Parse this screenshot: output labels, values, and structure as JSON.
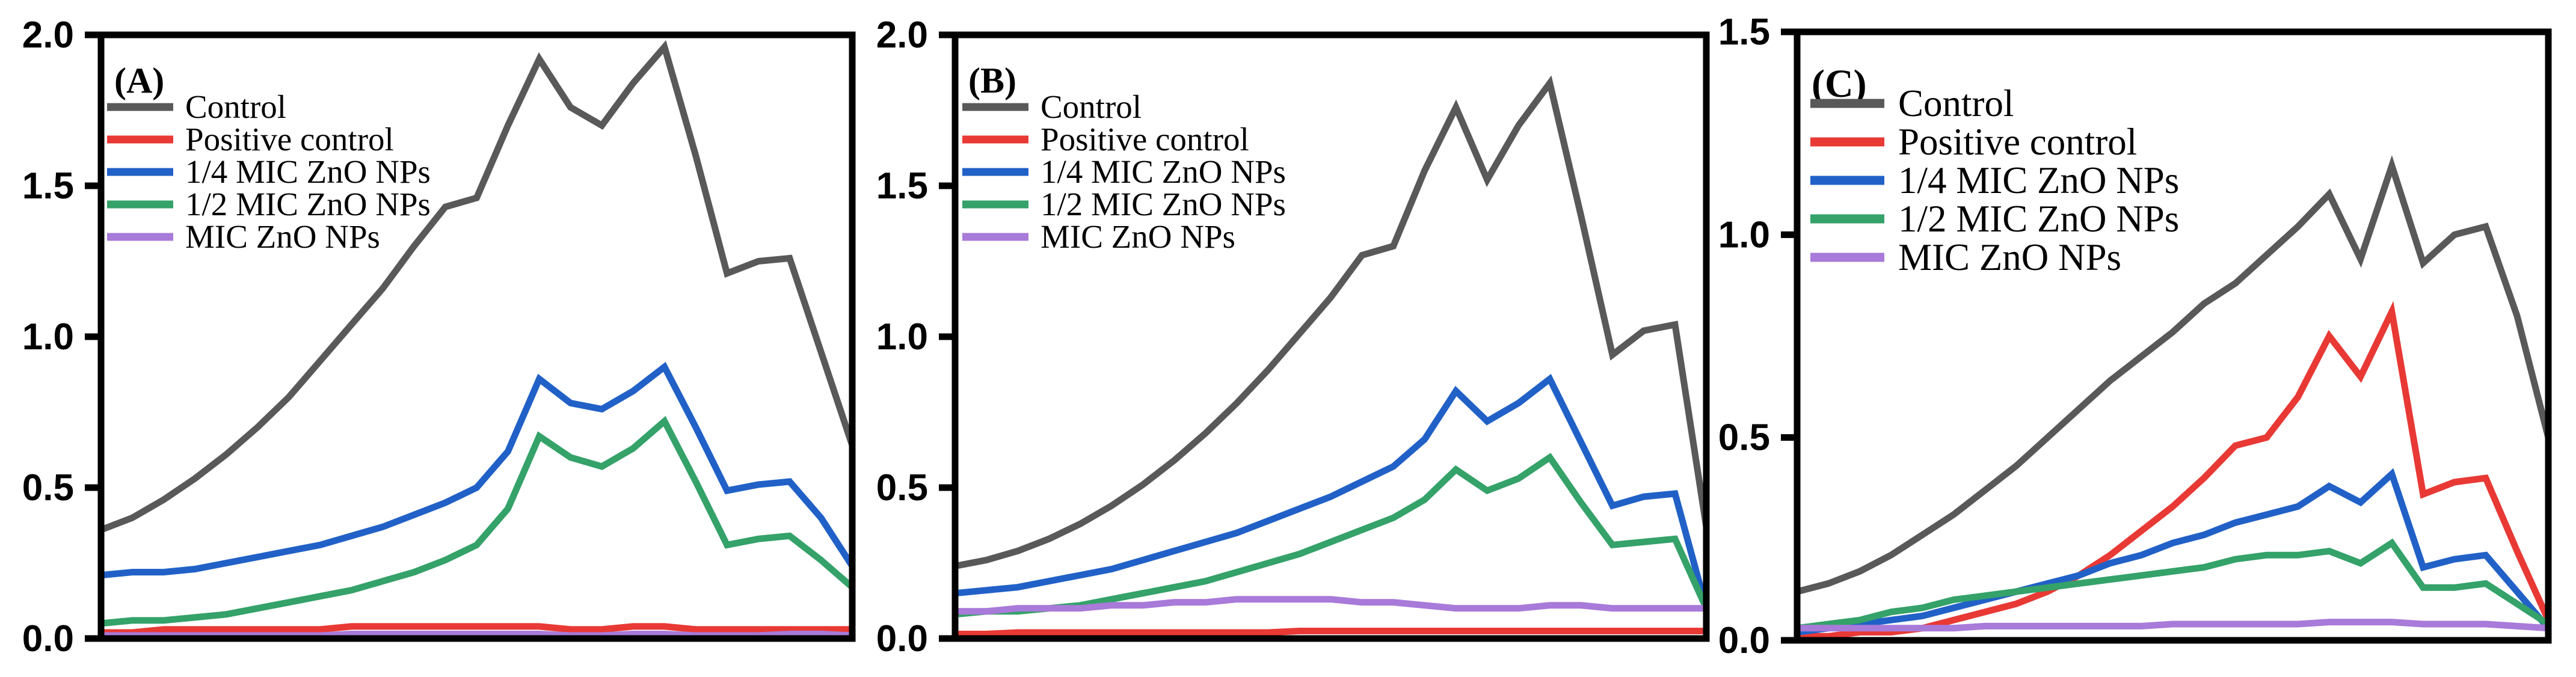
{
  "figure": {
    "background": "#ffffff",
    "frame_color": "#000000",
    "panels": [
      {
        "label": "(A)"
      },
      {
        "label": "(B)"
      },
      {
        "label": "(C)"
      }
    ]
  },
  "chart_data": [
    {
      "type": "line",
      "panel_label": "(A)",
      "title": "",
      "xlabel": "",
      "ylabel": "",
      "ylim": [
        0.0,
        2.0
      ],
      "yticks": [
        0.0,
        0.5,
        1.0,
        1.5,
        2.0
      ],
      "ytick_labels": [
        "0.0",
        "0.5",
        "1.0",
        "1.5",
        "2.0"
      ],
      "xticks": [],
      "grid": false,
      "legend_position": "top-left",
      "x": [
        1,
        2,
        3,
        4,
        5,
        6,
        7,
        8,
        9,
        10,
        11,
        12,
        13,
        14,
        15,
        16,
        17,
        18,
        19,
        20,
        21,
        22,
        23,
        24,
        25
      ],
      "series": [
        {
          "name": "Control",
          "color": "#595959",
          "values": [
            0.36,
            0.4,
            0.46,
            0.53,
            0.61,
            0.7,
            0.8,
            0.92,
            1.04,
            1.16,
            1.3,
            1.43,
            1.46,
            1.7,
            1.92,
            1.76,
            1.7,
            1.84,
            1.96,
            1.6,
            1.21,
            1.25,
            1.26,
            0.95,
            0.64
          ]
        },
        {
          "name": "Positive control",
          "color": "#e83935",
          "values": [
            0.02,
            0.02,
            0.03,
            0.03,
            0.03,
            0.03,
            0.03,
            0.03,
            0.04,
            0.04,
            0.04,
            0.04,
            0.04,
            0.04,
            0.04,
            0.03,
            0.03,
            0.04,
            0.04,
            0.03,
            0.03,
            0.03,
            0.03,
            0.03,
            0.03
          ]
        },
        {
          "name": "1/4 MIC ZnO NPs",
          "color": "#2161c7",
          "values": [
            0.21,
            0.22,
            0.22,
            0.23,
            0.25,
            0.27,
            0.29,
            0.31,
            0.34,
            0.37,
            0.41,
            0.45,
            0.5,
            0.62,
            0.86,
            0.78,
            0.76,
            0.82,
            0.9,
            0.7,
            0.49,
            0.51,
            0.52,
            0.4,
            0.24
          ]
        },
        {
          "name": "1/2 MIC ZnO NPs",
          "color": "#34a269",
          "values": [
            0.05,
            0.06,
            0.06,
            0.07,
            0.08,
            0.1,
            0.12,
            0.14,
            0.16,
            0.19,
            0.22,
            0.26,
            0.31,
            0.43,
            0.67,
            0.6,
            0.57,
            0.63,
            0.72,
            0.52,
            0.31,
            0.33,
            0.34,
            0.26,
            0.17
          ]
        },
        {
          "name": "MIC ZnO NPs",
          "color": "#a87ad9",
          "values": [
            0.01,
            0.01,
            0.01,
            0.01,
            0.01,
            0.01,
            0.01,
            0.01,
            0.015,
            0.015,
            0.015,
            0.015,
            0.015,
            0.015,
            0.015,
            0.01,
            0.01,
            0.015,
            0.015,
            0.01,
            0.01,
            0.01,
            0.015,
            0.015,
            0.01
          ]
        }
      ]
    },
    {
      "type": "line",
      "panel_label": "(B)",
      "title": "",
      "xlabel": "",
      "ylabel": "",
      "ylim": [
        0.0,
        2.0
      ],
      "yticks": [
        0.0,
        0.5,
        1.0,
        1.5,
        2.0
      ],
      "ytick_labels": [
        "0.0",
        "0.5",
        "1.0",
        "1.5",
        "2.0"
      ],
      "xticks": [],
      "grid": false,
      "legend_position": "top-left",
      "x": [
        1,
        2,
        3,
        4,
        5,
        6,
        7,
        8,
        9,
        10,
        11,
        12,
        13,
        14,
        15,
        16,
        17,
        18,
        19,
        20,
        21,
        22,
        23,
        24,
        25
      ],
      "series": [
        {
          "name": "Control",
          "color": "#595959",
          "values": [
            0.24,
            0.26,
            0.29,
            0.33,
            0.38,
            0.44,
            0.51,
            0.59,
            0.68,
            0.78,
            0.89,
            1.01,
            1.13,
            1.27,
            1.3,
            1.55,
            1.76,
            1.52,
            1.7,
            1.84,
            1.4,
            0.94,
            1.02,
            1.04,
            0.37
          ]
        },
        {
          "name": "Positive control",
          "color": "#e83935",
          "values": [
            0.015,
            0.015,
            0.02,
            0.02,
            0.02,
            0.02,
            0.02,
            0.02,
            0.02,
            0.02,
            0.02,
            0.025,
            0.025,
            0.025,
            0.025,
            0.025,
            0.025,
            0.025,
            0.025,
            0.025,
            0.025,
            0.025,
            0.025,
            0.025,
            0.025
          ]
        },
        {
          "name": "1/4 MIC ZnO NPs",
          "color": "#2161c7",
          "values": [
            0.15,
            0.16,
            0.17,
            0.19,
            0.21,
            0.23,
            0.26,
            0.29,
            0.32,
            0.35,
            0.39,
            0.43,
            0.47,
            0.52,
            0.57,
            0.66,
            0.82,
            0.72,
            0.78,
            0.86,
            0.65,
            0.44,
            0.47,
            0.48,
            0.1
          ]
        },
        {
          "name": "1/2 MIC ZnO NPs",
          "color": "#34a269",
          "values": [
            0.08,
            0.09,
            0.09,
            0.1,
            0.11,
            0.13,
            0.15,
            0.17,
            0.19,
            0.22,
            0.25,
            0.28,
            0.32,
            0.36,
            0.4,
            0.46,
            0.56,
            0.49,
            0.53,
            0.6,
            0.45,
            0.31,
            0.32,
            0.33,
            0.1
          ]
        },
        {
          "name": "MIC ZnO NPs",
          "color": "#a87ad9",
          "values": [
            0.09,
            0.09,
            0.1,
            0.1,
            0.1,
            0.11,
            0.11,
            0.12,
            0.12,
            0.13,
            0.13,
            0.13,
            0.13,
            0.12,
            0.12,
            0.11,
            0.1,
            0.1,
            0.1,
            0.11,
            0.11,
            0.1,
            0.1,
            0.1,
            0.1
          ]
        }
      ]
    },
    {
      "type": "line",
      "panel_label": "(C)",
      "title": "",
      "xlabel": "",
      "ylabel": "",
      "ylim": [
        0.0,
        1.5
      ],
      "yticks": [
        0.0,
        0.5,
        1.0,
        1.5
      ],
      "ytick_labels": [
        "0.0",
        "0.5",
        "1.0",
        "1.5"
      ],
      "xticks": [],
      "grid": false,
      "legend_position": "top-left",
      "x": [
        1,
        2,
        3,
        4,
        5,
        6,
        7,
        8,
        9,
        10,
        11,
        12,
        13,
        14,
        15,
        16,
        17,
        18,
        19,
        20,
        21,
        22,
        23,
        24,
        25
      ],
      "series": [
        {
          "name": "Control",
          "color": "#595959",
          "values": [
            0.12,
            0.14,
            0.17,
            0.21,
            0.26,
            0.31,
            0.37,
            0.43,
            0.5,
            0.57,
            0.64,
            0.7,
            0.76,
            0.83,
            0.88,
            0.95,
            1.02,
            1.1,
            0.94,
            1.17,
            0.93,
            1.0,
            1.02,
            0.8,
            0.5
          ]
        },
        {
          "name": "Positive control",
          "color": "#e83935",
          "values": [
            0.01,
            0.01,
            0.02,
            0.02,
            0.03,
            0.05,
            0.07,
            0.09,
            0.12,
            0.16,
            0.21,
            0.27,
            0.33,
            0.4,
            0.48,
            0.5,
            0.6,
            0.75,
            0.65,
            0.81,
            0.36,
            0.39,
            0.4,
            0.22,
            0.05
          ]
        },
        {
          "name": "1/4 MIC ZnO NPs",
          "color": "#2161c7",
          "values": [
            0.02,
            0.03,
            0.04,
            0.05,
            0.06,
            0.08,
            0.1,
            0.12,
            0.14,
            0.16,
            0.19,
            0.21,
            0.24,
            0.26,
            0.29,
            0.31,
            0.33,
            0.38,
            0.34,
            0.41,
            0.18,
            0.2,
            0.21,
            0.12,
            0.03
          ]
        },
        {
          "name": "1/2 MIC ZnO NPs",
          "color": "#34a269",
          "values": [
            0.03,
            0.04,
            0.05,
            0.07,
            0.08,
            0.1,
            0.11,
            0.12,
            0.13,
            0.14,
            0.15,
            0.16,
            0.17,
            0.18,
            0.2,
            0.21,
            0.21,
            0.22,
            0.19,
            0.24,
            0.13,
            0.13,
            0.14,
            0.09,
            0.04
          ]
        },
        {
          "name": "MIC ZnO NPs",
          "color": "#a87ad9",
          "values": [
            0.03,
            0.03,
            0.03,
            0.03,
            0.03,
            0.03,
            0.035,
            0.035,
            0.035,
            0.035,
            0.035,
            0.035,
            0.04,
            0.04,
            0.04,
            0.04,
            0.04,
            0.045,
            0.045,
            0.045,
            0.04,
            0.04,
            0.04,
            0.035,
            0.03
          ]
        }
      ]
    }
  ]
}
